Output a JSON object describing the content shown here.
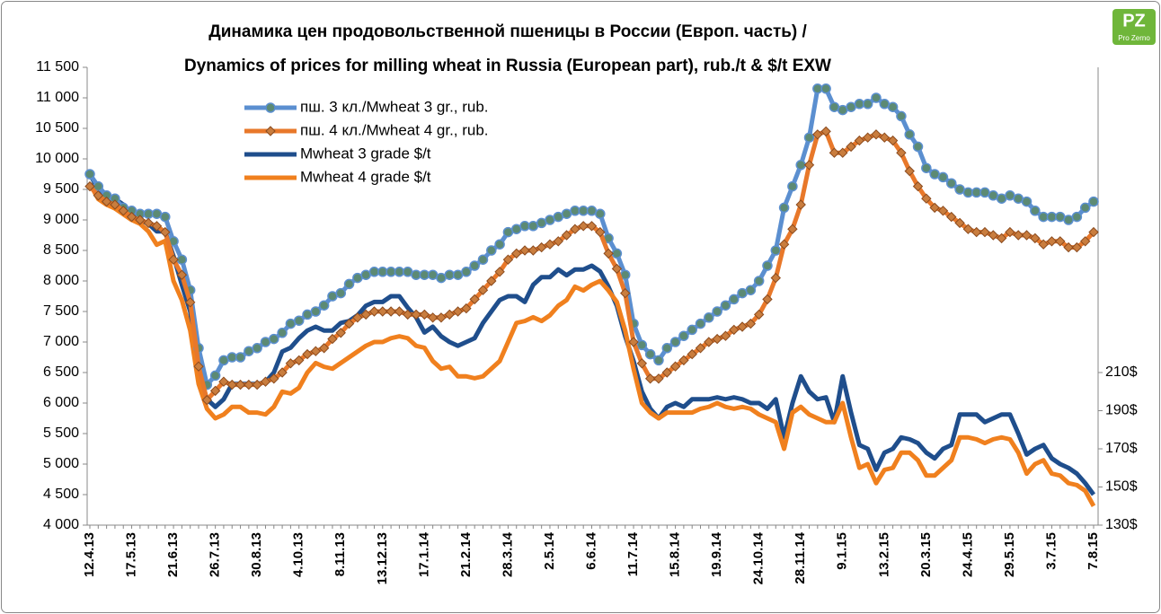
{
  "chart_data": {
    "type": "line",
    "title": "Динамика цен продовольственной пшеницы в России (Европ. часть) /",
    "subtitle": "Dynamics of prices for milling wheat in Russia (European part), rub./t & $/t EXW",
    "logo": "Pro Zerno",
    "categories": [
      "12.4.13",
      null,
      null,
      null,
      null,
      "17.5.13",
      null,
      null,
      null,
      null,
      "21.6.13",
      null,
      null,
      null,
      null,
      "26.7.13",
      null,
      null,
      null,
      null,
      "30.8.13",
      null,
      null,
      null,
      null,
      "4.10.13",
      null,
      null,
      null,
      null,
      "8.11.13",
      null,
      null,
      null,
      null,
      "13.12.13",
      null,
      null,
      null,
      null,
      "17.1.14",
      null,
      null,
      null,
      null,
      "21.2.14",
      null,
      null,
      null,
      null,
      "28.3.14",
      null,
      null,
      null,
      null,
      "2.5.14",
      null,
      null,
      null,
      null,
      "6.6.14",
      null,
      null,
      null,
      null,
      "11.7.14",
      null,
      null,
      null,
      null,
      "15.8.14",
      null,
      null,
      null,
      null,
      "19.9.14",
      null,
      null,
      null,
      null,
      "24.10.14",
      null,
      null,
      null,
      null,
      "28.11.14",
      null,
      null,
      null,
      null,
      "9.1.15",
      null,
      null,
      null,
      null,
      "13.2.15",
      null,
      null,
      null,
      null,
      "20.3.15",
      null,
      null,
      null,
      null,
      "24.4.15",
      null,
      null,
      null,
      null,
      "29.5.15",
      null,
      null,
      null,
      null,
      "3.7.15",
      null,
      null,
      null,
      null,
      "7.8.15"
    ],
    "series": [
      {
        "name": "пш. 3 кл./Mwheat 3 gr., rub.",
        "color": "#5b8fd0",
        "marker": "circle",
        "marker_color": "#5c8a74",
        "values": [
          9750,
          9550,
          9400,
          9350,
          9200,
          9150,
          9100,
          9100,
          9100,
          9050,
          8650,
          8350,
          7850,
          6900,
          6300,
          6450,
          6700,
          6750,
          6750,
          6850,
          6900,
          7000,
          7050,
          7150,
          7300,
          7350,
          7450,
          7500,
          7600,
          7750,
          7800,
          7950,
          8050,
          8100,
          8150,
          8150,
          8150,
          8150,
          8150,
          8100,
          8100,
          8100,
          8050,
          8100,
          8100,
          8150,
          8250,
          8350,
          8500,
          8600,
          8800,
          8850,
          8900,
          8900,
          8950,
          9000,
          9050,
          9100,
          9150,
          9150,
          9150,
          9100,
          8700,
          8450,
          8100,
          7300,
          6950,
          6800,
          6700,
          6900,
          7000,
          7100,
          7200,
          7300,
          7400,
          7500,
          7600,
          7700,
          7800,
          7850,
          8000,
          8250,
          8500,
          9200,
          9550,
          9900,
          10350,
          11150,
          11150,
          10850,
          10800,
          10850,
          10900,
          10900,
          11000,
          10900,
          10850,
          10700,
          10400,
          10200,
          9850,
          9750,
          9700,
          9600,
          9500,
          9450,
          9450,
          9450,
          9400,
          9350,
          9400,
          9350,
          9300,
          9150,
          9050,
          9050,
          9050,
          9000,
          9050,
          9200,
          9300
        ]
      },
      {
        "name": "пш. 4 кл./Mwheat 4 gr., rub.",
        "color": "#e8782a",
        "marker": "diamond",
        "marker_color": "#c97d3e",
        "values": [
          9550,
          9400,
          9300,
          9250,
          9150,
          9050,
          9000,
          8950,
          8900,
          8800,
          8350,
          8100,
          7650,
          6600,
          6050,
          6200,
          6350,
          6300,
          6300,
          6300,
          6300,
          6350,
          6400,
          6500,
          6650,
          6700,
          6800,
          6850,
          6900,
          7050,
          7150,
          7300,
          7400,
          7450,
          7500,
          7500,
          7500,
          7500,
          7450,
          7450,
          7450,
          7400,
          7400,
          7450,
          7500,
          7550,
          7700,
          7850,
          8000,
          8150,
          8350,
          8450,
          8500,
          8500,
          8550,
          8600,
          8650,
          8750,
          8850,
          8900,
          8900,
          8800,
          8450,
          8200,
          7800,
          7000,
          6650,
          6400,
          6400,
          6500,
          6600,
          6700,
          6800,
          6900,
          7000,
          7050,
          7100,
          7200,
          7250,
          7300,
          7450,
          7700,
          8050,
          8600,
          8850,
          9250,
          9900,
          10400,
          10450,
          10100,
          10100,
          10200,
          10300,
          10350,
          10400,
          10350,
          10300,
          10100,
          9800,
          9550,
          9350,
          9200,
          9150,
          9050,
          8950,
          8850,
          8800,
          8800,
          8750,
          8700,
          8800,
          8750,
          8750,
          8700,
          8600,
          8650,
          8650,
          8550,
          8550,
          8650,
          8800
        ]
      },
      {
        "name": "Mwheat 3 grade $/t",
        "color": "#1f4e8c",
        "axis": "y2",
        "values": [
          314,
          306,
          303,
          301,
          298,
          293,
          290,
          288,
          284,
          284,
          271,
          256,
          242,
          210,
          196,
          192,
          196,
          204,
          204,
          204,
          204,
          205,
          210,
          221,
          223,
          228,
          232,
          234,
          232,
          232,
          236,
          237,
          240,
          245,
          247,
          247,
          250,
          250,
          244,
          239,
          231,
          234,
          229,
          226,
          224,
          226,
          228,
          236,
          242,
          248,
          250,
          250,
          247,
          256,
          260,
          260,
          264,
          261,
          264,
          264,
          266,
          263,
          255,
          245,
          229,
          216,
          200,
          191,
          186,
          192,
          194,
          192,
          196,
          196,
          196,
          197,
          196,
          197,
          196,
          194,
          194,
          191,
          196,
          176,
          194,
          208,
          200,
          196,
          197,
          184,
          208,
          189,
          172,
          170,
          159,
          168,
          170,
          176,
          175,
          173,
          168,
          165,
          170,
          172,
          188,
          188,
          188,
          184,
          186,
          188,
          188,
          178,
          167,
          170,
          172,
          165,
          162,
          160,
          157,
          152,
          146
        ]
      },
      {
        "name": "Mwheat 4 grade $/t",
        "color": "#f0801e",
        "axis": "y2",
        "values": [
          309,
          301,
          298,
          296,
          293,
          290,
          288,
          284,
          277,
          279,
          258,
          248,
          232,
          204,
          191,
          186,
          188,
          192,
          192,
          189,
          189,
          188,
          192,
          200,
          199,
          202,
          210,
          215,
          213,
          212,
          215,
          218,
          221,
          224,
          226,
          226,
          228,
          229,
          228,
          224,
          223,
          216,
          212,
          213,
          208,
          208,
          207,
          208,
          212,
          216,
          226,
          236,
          237,
          239,
          237,
          240,
          245,
          248,
          255,
          253,
          256,
          258,
          253,
          247,
          232,
          212,
          194,
          189,
          186,
          189,
          189,
          189,
          189,
          191,
          192,
          194,
          192,
          191,
          192,
          191,
          188,
          186,
          184,
          170,
          189,
          192,
          188,
          186,
          184,
          184,
          194,
          176,
          160,
          162,
          152,
          159,
          160,
          168,
          168,
          164,
          156,
          156,
          160,
          164,
          176,
          176,
          175,
          173,
          175,
          176,
          175,
          168,
          157,
          162,
          164,
          157,
          156,
          152,
          151,
          148,
          140
        ]
      }
    ],
    "ylim": [
      4000,
      11500
    ],
    "yticks": [
      {
        "value": 4000,
        "label": "4 000"
      },
      {
        "value": 4500,
        "label": "4 500"
      },
      {
        "value": 5000,
        "label": "5 000"
      },
      {
        "value": 5500,
        "label": "5 500"
      },
      {
        "value": 6000,
        "label": "6 000"
      },
      {
        "value": 6500,
        "label": "6 500"
      },
      {
        "value": 7000,
        "label": "7 000"
      },
      {
        "value": 7500,
        "label": "7 500"
      },
      {
        "value": 8000,
        "label": "8 000"
      },
      {
        "value": 8500,
        "label": "8 500"
      },
      {
        "value": 9000,
        "label": "9 000"
      },
      {
        "value": 9500,
        "label": "9 500"
      },
      {
        "value": 10000,
        "label": "10 000"
      },
      {
        "value": 10500,
        "label": "10 500"
      },
      {
        "value": 11000,
        "label": "11 000"
      },
      {
        "value": 11500,
        "label": "11 500"
      }
    ],
    "y2lim": [
      130,
      370
    ],
    "y2ticks": [
      {
        "value": 130,
        "label": "130$"
      },
      {
        "value": 150,
        "label": "150$"
      },
      {
        "value": 170,
        "label": "170$"
      },
      {
        "value": 190,
        "label": "190$"
      },
      {
        "value": 210,
        "label": "210$"
      }
    ],
    "grid": false,
    "legend": "top-left"
  }
}
